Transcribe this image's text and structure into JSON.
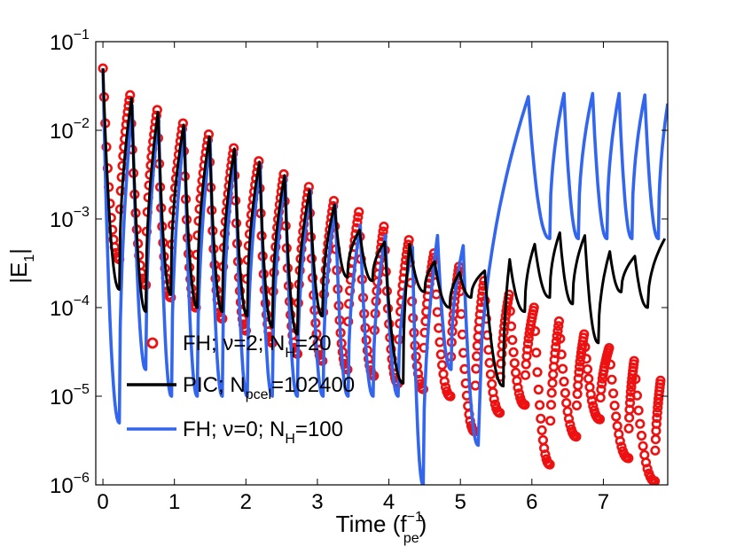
{
  "chart_data": {
    "type": "line",
    "title": "",
    "xlabel": {
      "main": "Time (f",
      "sup": "−1",
      "sub": "pe",
      "close": ")"
    },
    "ylabel": {
      "main": "|E",
      "sub": "1",
      "close": "|"
    },
    "xlim": [
      -0.1,
      7.9
    ],
    "ylim": [
      1e-06,
      0.1
    ],
    "yscale": "log",
    "grid": false,
    "legend_position": "lower-left",
    "x_ticks": [
      0,
      1,
      2,
      3,
      4,
      5,
      6,
      7
    ],
    "y_ticks": [
      {
        "value": 1e-06,
        "base": "10",
        "exp": "−6"
      },
      {
        "value": 1e-05,
        "base": "10",
        "exp": "−5"
      },
      {
        "value": 0.0001,
        "base": "10",
        "exp": "−4"
      },
      {
        "value": 0.001,
        "base": "10",
        "exp": "−3"
      },
      {
        "value": 0.01,
        "base": "10",
        "exp": "−2"
      },
      {
        "value": 0.1,
        "base": "10",
        "exp": "−1"
      }
    ],
    "colors": {
      "fh_nu2": "#ee1111",
      "pic": "#000000",
      "fh_nu0": "#3366ee"
    },
    "series": [
      {
        "key": "fh_nu2",
        "legend": {
          "pre": "FH; ν=2; N",
          "sub": "H",
          "post": "=20"
        },
        "style": "markers",
        "peak_times": [
          0.0,
          0.38,
          0.76,
          1.12,
          1.48,
          1.83,
          2.18,
          2.53,
          2.88,
          3.23,
          3.58,
          3.93,
          4.28,
          4.63,
          4.98,
          5.33,
          5.68,
          6.03,
          6.38,
          6.73,
          7.08,
          7.43,
          7.8
        ],
        "peak_values": [
          0.05,
          0.025,
          0.017,
          0.012,
          0.009,
          0.0063,
          0.0045,
          0.0032,
          0.0023,
          0.0016,
          0.0012,
          0.00082,
          0.00058,
          0.00041,
          0.00029,
          0.0002,
          0.00014,
          0.0001,
          7e-05,
          5e-05,
          3.5e-05,
          2.5e-05,
          1.5e-05
        ],
        "minima": [
          [
            0.23,
            0.00035
          ],
          [
            0.6,
            0.00018
          ],
          [
            0.95,
            0.00013
          ],
          [
            1.3,
            0.0001
          ],
          [
            1.67,
            7.5e-05
          ],
          [
            2.0,
            5.5e-05
          ],
          [
            2.37,
            4e-05
          ],
          [
            2.72,
            3e-05
          ],
          [
            3.07,
            2.5e-05
          ],
          [
            3.42,
            2e-05
          ],
          [
            3.79,
            1.7e-05
          ],
          [
            4.13,
            1.4e-05
          ],
          [
            4.48,
            1.2e-05
          ],
          [
            4.86,
            1e-05
          ],
          [
            5.2,
            4e-06
          ],
          [
            5.55,
            6.5e-06
          ],
          [
            5.9,
            8e-06
          ],
          [
            6.25,
            1.7e-06
          ],
          [
            6.62,
            3.5e-06
          ],
          [
            6.95,
            5.5e-06
          ],
          [
            7.35,
            2e-06
          ],
          [
            7.72,
            1.1e-06
          ]
        ]
      },
      {
        "key": "pic",
        "legend": {
          "pre": "PIC; N",
          "sub": "pcel",
          "post": "=102400"
        },
        "style": "line",
        "peak_times": [
          0.0,
          0.4,
          0.77,
          1.13,
          1.49,
          1.84,
          2.19,
          2.54,
          2.89,
          3.24,
          3.59,
          3.94,
          4.29,
          4.64,
          4.99,
          5.34,
          5.69,
          6.04,
          6.39,
          6.74,
          7.09,
          7.44,
          7.86
        ],
        "peak_values": [
          0.05,
          0.023,
          0.016,
          0.0115,
          0.0085,
          0.0062,
          0.0044,
          0.0031,
          0.0021,
          0.00145,
          0.00075,
          0.00055,
          0.00052,
          0.00033,
          0.00025,
          0.00026,
          0.00035,
          0.00052,
          0.0007,
          0.00065,
          0.00043,
          0.00038,
          0.0006
        ],
        "minima": [
          [
            0.23,
            0.00016
          ],
          [
            0.6,
            9e-05
          ],
          [
            0.95,
            0.00014
          ],
          [
            1.32,
            0.0001
          ],
          [
            1.67,
            9e-05
          ],
          [
            2.02,
            8e-05
          ],
          [
            2.37,
            6e-05
          ],
          [
            2.72,
            5e-05
          ],
          [
            3.07,
            8e-05
          ],
          [
            3.42,
            0.00022
          ],
          [
            3.77,
            0.0002
          ],
          [
            4.2,
            1.4e-05
          ],
          [
            4.5,
            0.00015
          ],
          [
            4.85,
            0.0001
          ],
          [
            5.15,
            0.00013
          ],
          [
            5.6,
            1.3e-05
          ],
          [
            5.9,
            9e-05
          ],
          [
            6.25,
            0.00013
          ],
          [
            6.57,
            0.00011
          ],
          [
            6.93,
            4e-05
          ],
          [
            7.25,
            0.00015
          ],
          [
            7.62,
            0.0001
          ]
        ]
      },
      {
        "key": "fh_nu0",
        "legend": {
          "pre": "FH; ν=0; N",
          "sub": "H",
          "post": "=100"
        },
        "style": "line",
        "peak_times": [
          0.0,
          0.41,
          0.78,
          1.14,
          1.5,
          1.85,
          2.2,
          2.55,
          2.9,
          3.25,
          3.6,
          3.95,
          4.33,
          4.68,
          5.04,
          5.95,
          6.45,
          6.85,
          7.22,
          7.58,
          7.9
        ],
        "peak_values": [
          0.05,
          0.019,
          0.014,
          0.0105,
          0.0078,
          0.0058,
          0.0042,
          0.003,
          0.0021,
          0.00145,
          0.00085,
          0.00065,
          0.00048,
          0.00065,
          0.0005,
          0.024,
          0.026,
          0.026,
          0.026,
          0.025,
          0.02
        ],
        "minima": [
          [
            0.23,
            5e-06
          ],
          [
            0.6,
            2e-05
          ],
          [
            0.96,
            1e-05
          ],
          [
            1.32,
            1e-05
          ],
          [
            1.67,
            1e-05
          ],
          [
            2.02,
            1e-05
          ],
          [
            2.37,
            1e-05
          ],
          [
            2.72,
            1e-05
          ],
          [
            3.08,
            1e-05
          ],
          [
            3.43,
            1e-05
          ],
          [
            3.78,
            1e-05
          ],
          [
            4.13,
            1e-05
          ],
          [
            4.48,
            1e-06
          ],
          [
            4.87,
            2e-05
          ],
          [
            5.25,
            2.8e-06
          ],
          [
            6.25,
            0.0006
          ],
          [
            6.65,
            0.0006
          ],
          [
            7.05,
            0.0006
          ],
          [
            7.4,
            0.0006
          ],
          [
            7.77,
            0.0006
          ]
        ]
      }
    ]
  }
}
